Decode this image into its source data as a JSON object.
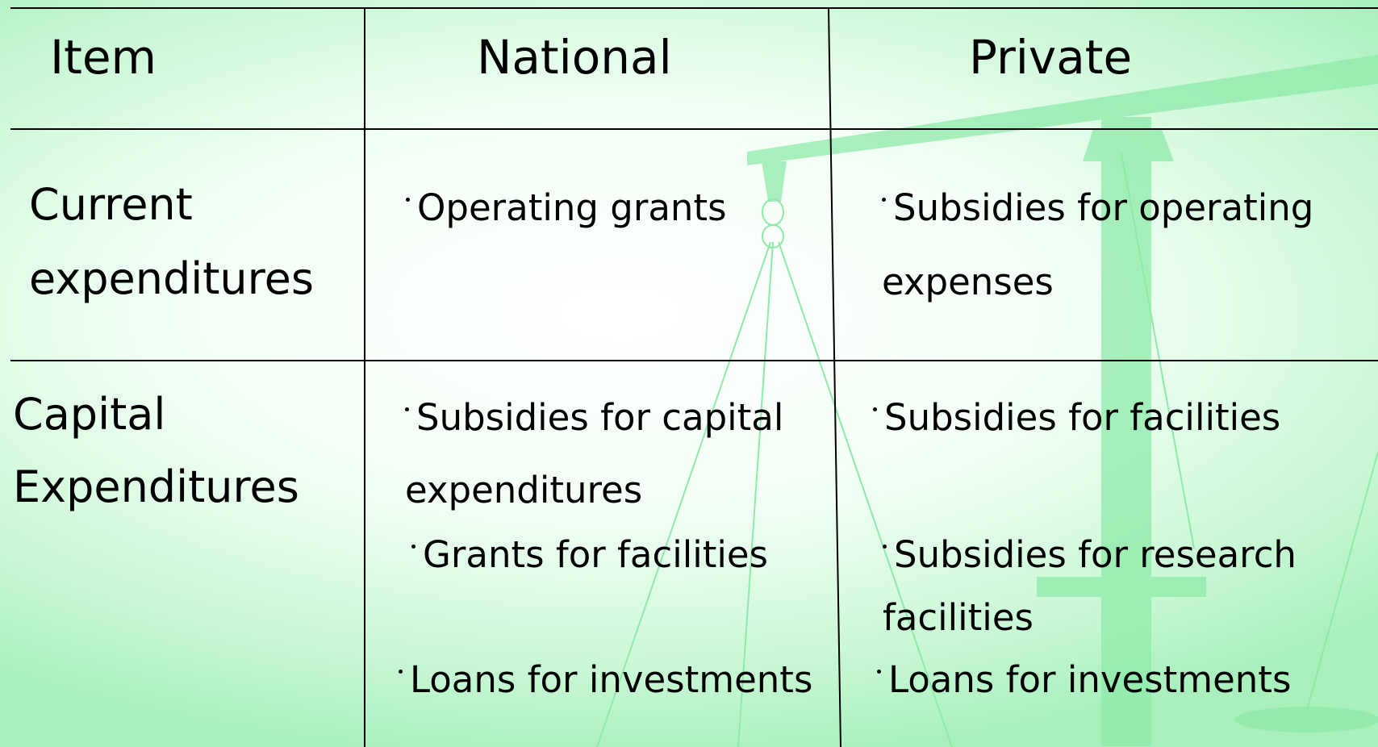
{
  "table": {
    "header": [
      "Item",
      "National",
      "Private"
    ],
    "rows": [
      {
        "item": "Current expenditures",
        "national": [
          "Operating grants"
        ],
        "private": [
          "Subsidies for operating expenses"
        ]
      },
      {
        "item": "Capital Expenditures",
        "national": [
          "Subsidies for capital expenditures",
          "Grants for facilities",
          "Loans for investments"
        ],
        "private": [
          "Subsidies for facilities",
          "Subsidies for research facilities",
          "Loans for investments"
        ]
      }
    ]
  }
}
